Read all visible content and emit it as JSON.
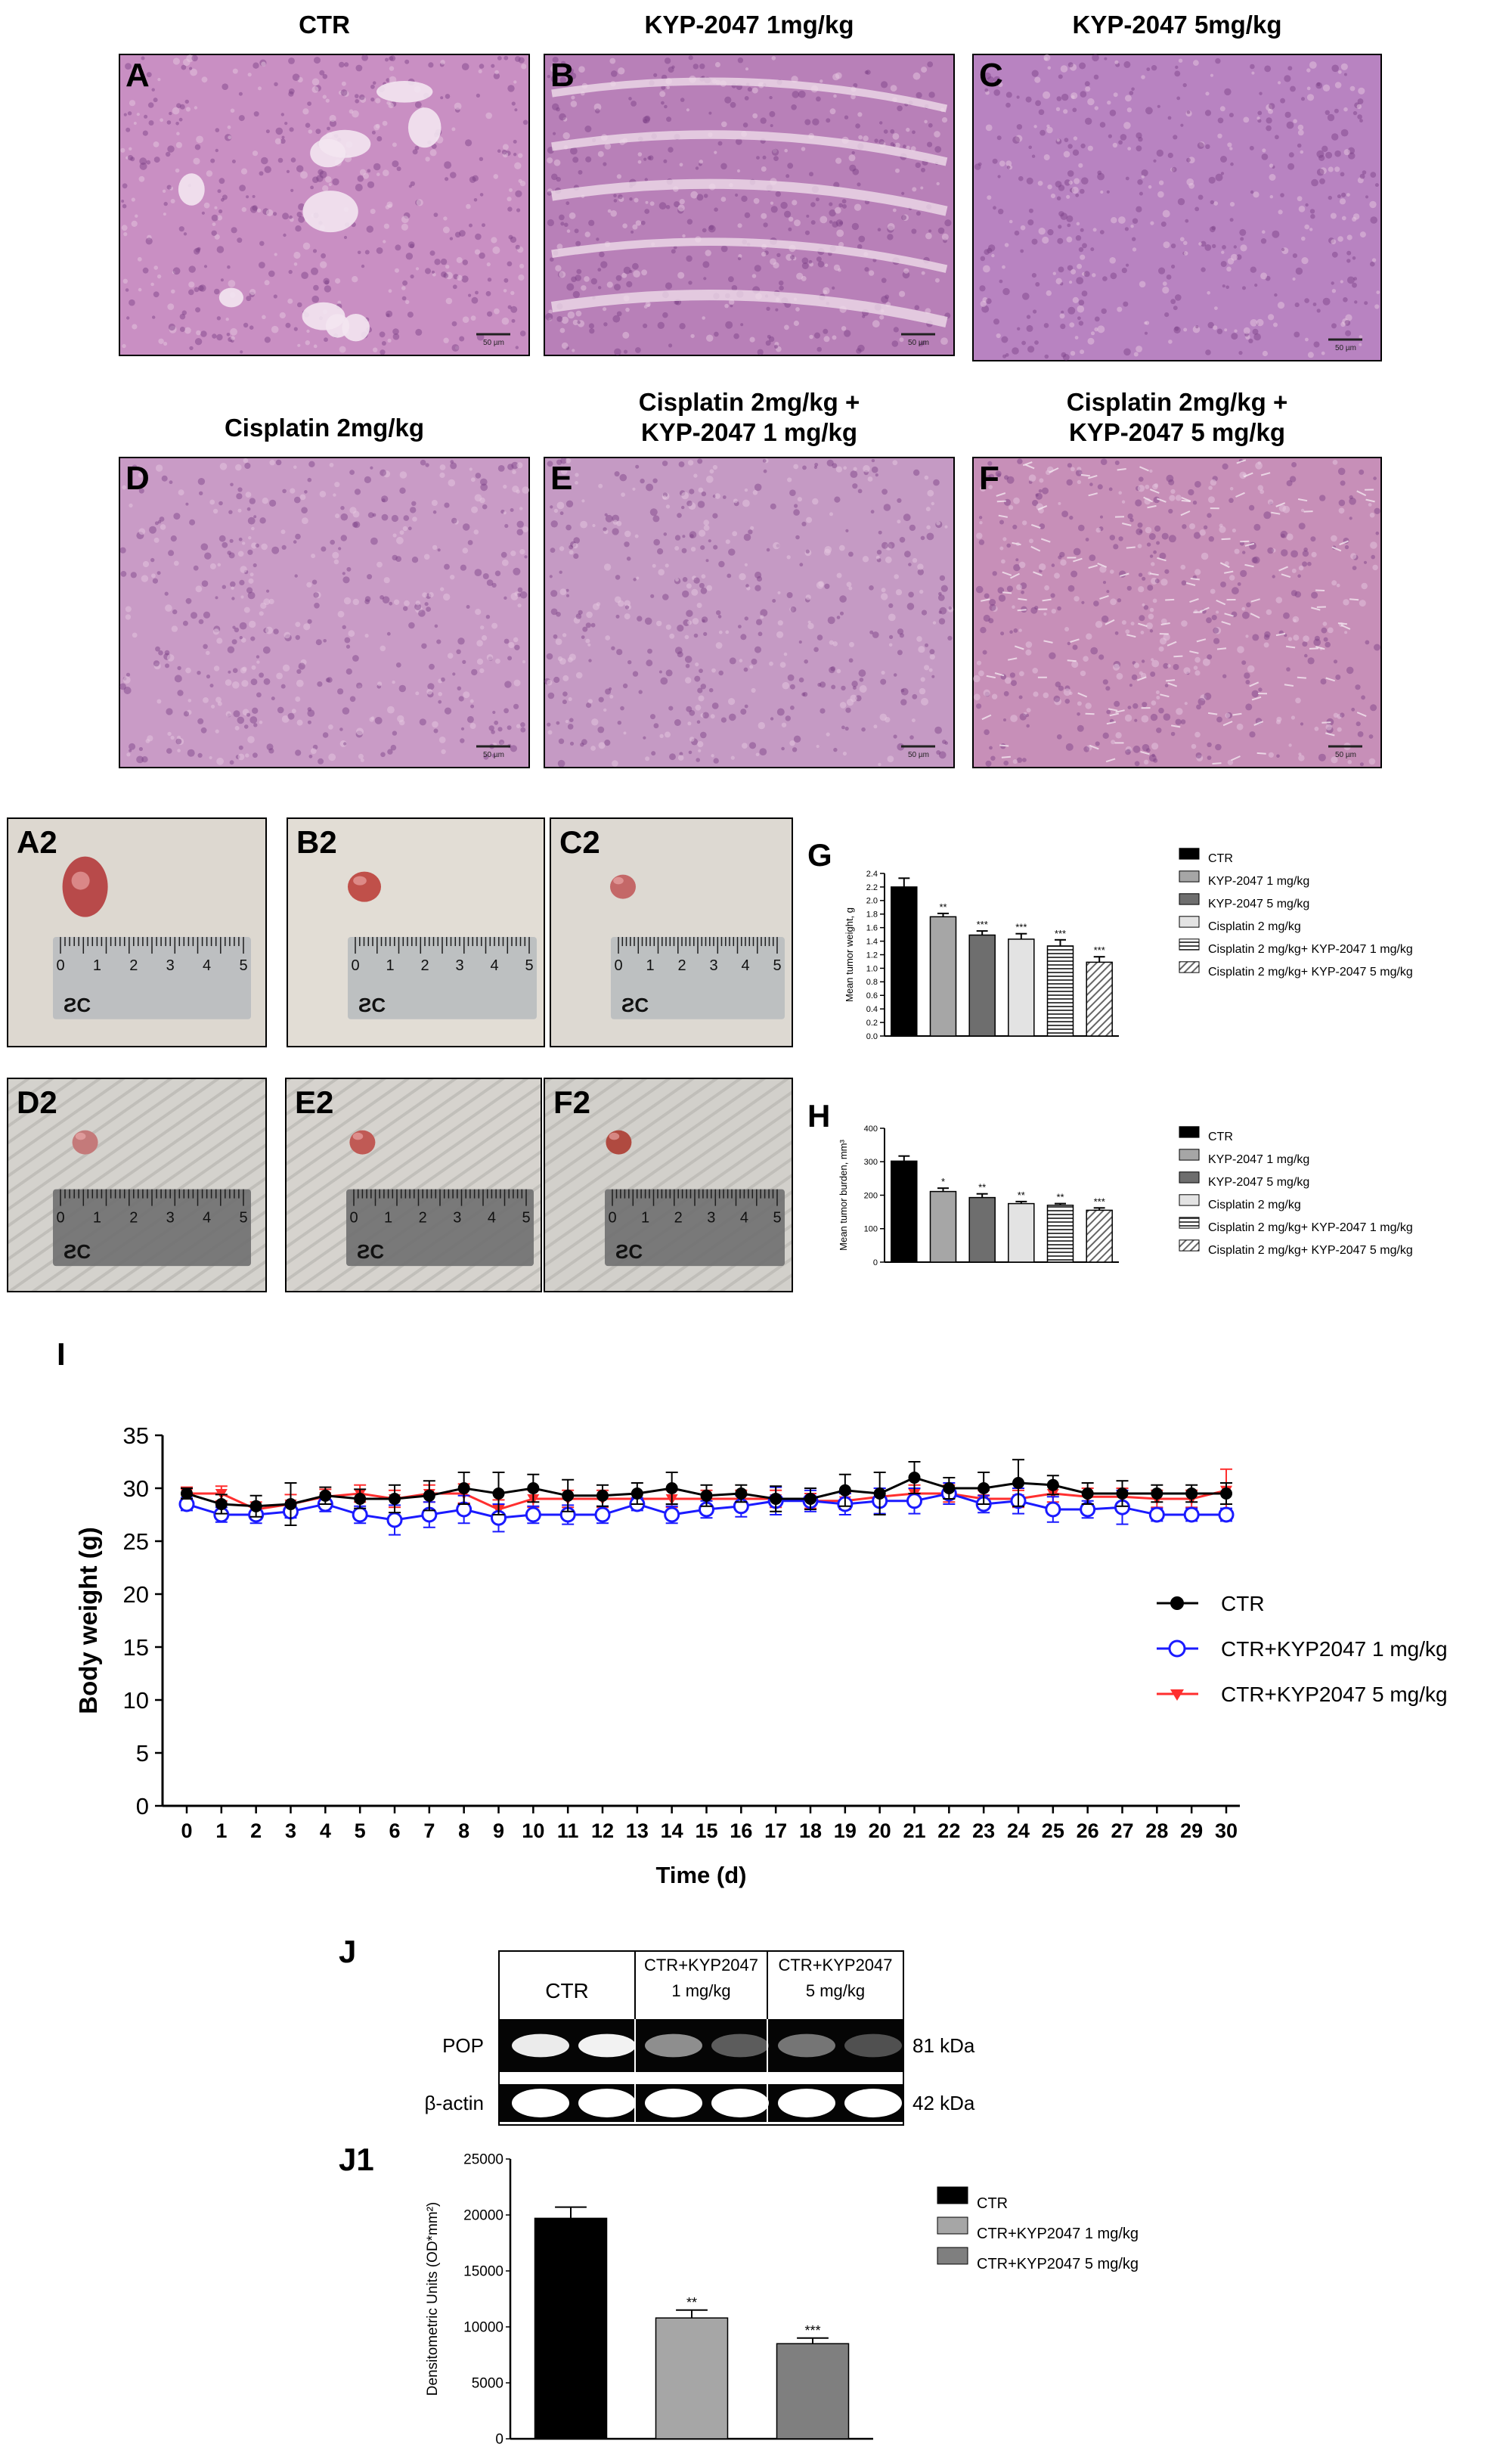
{
  "histology": {
    "panels": [
      {
        "letter": "A",
        "title_lines": [
          "CTR"
        ],
        "scale_label": "50 µm",
        "tone": "#c98fc3",
        "pattern": "loose"
      },
      {
        "letter": "B",
        "title_lines": [
          "KYP-2047 1mg/kg"
        ],
        "scale_label": "50 µm",
        "tone": "#b880b8",
        "pattern": "streak"
      },
      {
        "letter": "C",
        "title_lines": [
          "KYP-2047 5mg/kg"
        ],
        "scale_label": "50 µm",
        "tone": "#b883c1",
        "pattern": "dense"
      },
      {
        "letter": "D",
        "title_lines": [
          "Cisplatin  2mg/kg"
        ],
        "scale_label": "50 µm",
        "tone": "#c99bc6",
        "pattern": "dense"
      },
      {
        "letter": "E",
        "title_lines": [
          "Cisplatin 2mg/kg +",
          "KYP-2047 1 mg/kg"
        ],
        "scale_label": "50 µm",
        "tone": "#c59ac4",
        "pattern": "dense"
      },
      {
        "letter": "F",
        "title_lines": [
          "Cisplatin 2mg/kg +",
          "KYP-2047 5 mg/kg"
        ],
        "scale_label": "50 µm",
        "tone": "#c78fb8",
        "pattern": "mesh"
      }
    ]
  },
  "tumor_photos": {
    "panels": [
      {
        "letter": "A2",
        "background": "#ddd8d0",
        "tissue_color": "#b84a4a",
        "tissue_size": "large",
        "ruler_numbers": [
          "0",
          "1",
          "2",
          "3",
          "4",
          "5"
        ],
        "ruler_marking": "ƧC"
      },
      {
        "letter": "B2",
        "background": "#e2ddd5",
        "tissue_color": "#c0504a",
        "tissue_size": "medium",
        "ruler_numbers": [
          "0",
          "1",
          "2",
          "3",
          "4",
          "5"
        ],
        "ruler_marking": "ƧC"
      },
      {
        "letter": "C2",
        "background": "#ddd9d2",
        "tissue_color": "#c46868",
        "tissue_size": "small",
        "ruler_numbers": [
          "0",
          "1",
          "2",
          "3",
          "4",
          "5"
        ],
        "ruler_marking": "ƧC"
      },
      {
        "letter": "D2",
        "background": "#d4d2cd",
        "tissue_color": "#c47a7a",
        "tissue_size": "small",
        "ruler_numbers": [
          "0",
          "1",
          "2",
          "3",
          "4",
          "5"
        ],
        "ruler_marking": "ƧC"
      },
      {
        "letter": "E2",
        "background": "#d6d3ce",
        "tissue_color": "#c05a55",
        "tissue_size": "small",
        "ruler_numbers": [
          "0",
          "1",
          "2",
          "3",
          "4",
          "5"
        ],
        "ruler_marking": "ƧC"
      },
      {
        "letter": "F2",
        "background": "#d2d0cb",
        "tissue_color": "#b04a40",
        "tissue_size": "small",
        "ruler_numbers": [
          "0",
          "1",
          "2",
          "3",
          "4",
          "5"
        ],
        "ruler_marking": "ƧC"
      }
    ]
  },
  "chart_data": [
    {
      "id": "G",
      "type": "bar",
      "panel_letter": "G",
      "ylabel": "Mean tumor weight, g",
      "ylim": [
        0,
        2.4
      ],
      "yticks": [
        "0.0",
        "0.2",
        "0.4",
        "0.6",
        "0.8",
        "1.0",
        "1.2",
        "1.4",
        "1.6",
        "1.8",
        "2.0",
        "2.2",
        "2.4"
      ],
      "categories": [
        "CTR",
        "KYP-2047 1 mg/kg",
        "KYP-2047 5 mg/kg",
        "Cisplatin 2 mg/kg",
        "Cisplatin 2 mg/kg+ KYP-2047 1 mg/kg",
        "Cisplatin 2 mg/kg+ KYP-2047 5 mg/kg"
      ],
      "values": [
        2.2,
        1.76,
        1.49,
        1.43,
        1.33,
        1.09
      ],
      "errors": [
        0.13,
        0.05,
        0.06,
        0.08,
        0.09,
        0.08
      ],
      "significance": [
        "",
        "**",
        "***",
        "***",
        "***",
        "***"
      ],
      "fills": [
        "#000000",
        "#a6a6a6",
        "#6e6e6e",
        "#e3e3e3",
        "hlines",
        "diag"
      ],
      "legend_position": "right"
    },
    {
      "id": "H",
      "type": "bar",
      "panel_letter": "H",
      "ylabel": "Mean tumor burden, mm³",
      "ylim": [
        0,
        400
      ],
      "yticks": [
        "0",
        "100",
        "200",
        "300",
        "400"
      ],
      "categories": [
        "CTR",
        "KYP-2047 1 mg/kg",
        "KYP-2047 5 mg/kg",
        "Cisplatin 2 mg/kg",
        "Cisplatin 2 mg/kg+ KYP-2047 1 mg/kg",
        "Cisplatin 2 mg/kg+ KYP-2047 5 mg/kg"
      ],
      "values": [
        302,
        211,
        193,
        175,
        170,
        155
      ],
      "errors": [
        15,
        10,
        11,
        6,
        5,
        7
      ],
      "significance": [
        "",
        "*",
        "**",
        "**",
        "**",
        "***"
      ],
      "fills": [
        "#000000",
        "#a6a6a6",
        "#6e6e6e",
        "#e3e3e3",
        "hlines",
        "diag"
      ],
      "legend_position": "right"
    },
    {
      "id": "I",
      "type": "line",
      "panel_letter": "I",
      "xlabel": "Time (d)",
      "ylabel": "Body weight  (g)",
      "xlim": [
        0,
        30
      ],
      "ylim": [
        0,
        35
      ],
      "yticks": [
        "0",
        "5",
        "10",
        "15",
        "20",
        "25",
        "30",
        "35"
      ],
      "x": [
        0,
        1,
        2,
        3,
        4,
        5,
        6,
        7,
        8,
        9,
        10,
        11,
        12,
        13,
        14,
        15,
        16,
        17,
        18,
        19,
        20,
        21,
        22,
        23,
        24,
        25,
        26,
        27,
        28,
        29,
        30
      ],
      "series": [
        {
          "name": "CTR",
          "color": "#000000",
          "marker": "filled-circle",
          "values": [
            29.5,
            28.5,
            28.3,
            28.5,
            29.3,
            29,
            29,
            29.3,
            30,
            29.5,
            30,
            29.3,
            29.3,
            29.5,
            30,
            29.3,
            29.5,
            29,
            29,
            29.8,
            29.5,
            31,
            30,
            30,
            30.5,
            30.3,
            29.5,
            29.5,
            29.5,
            29.5,
            29.5
          ],
          "errors": [
            0.5,
            0.9,
            1,
            2,
            0.8,
            0.9,
            1.3,
            1.4,
            1.5,
            2,
            1.3,
            1.5,
            1,
            1,
            1.5,
            1,
            0.8,
            1.2,
            1,
            1.5,
            2,
            1.5,
            1,
            1.5,
            2.2,
            0.9,
            1,
            1.2,
            0.8,
            0.8,
            1
          ]
        },
        {
          "name": "CTR+KYP2047 1 mg/kg",
          "color": "#1a1aff",
          "marker": "open-circle",
          "values": [
            28.5,
            27.5,
            27.5,
            27.8,
            28.5,
            27.5,
            27,
            27.5,
            28,
            27.2,
            27.5,
            27.5,
            27.5,
            28.5,
            27.5,
            28,
            28.3,
            28.8,
            28.8,
            28.5,
            28.8,
            28.8,
            29.5,
            28.5,
            28.8,
            28,
            28,
            28.2,
            27.5,
            27.5,
            27.5
          ],
          "errors": [
            0.6,
            0.7,
            0.8,
            0.6,
            0.7,
            0.8,
            1.4,
            1.2,
            1.3,
            1.3,
            0.8,
            0.9,
            0.8,
            0.6,
            0.8,
            0.8,
            1,
            1.3,
            1,
            1,
            1.2,
            1.2,
            1,
            0.8,
            1.2,
            1.2,
            0.8,
            1.6,
            0.6,
            0.6,
            0.6
          ]
        },
        {
          "name": "CTR+KYP2047 5 mg/kg",
          "color": "#ff2e2e",
          "marker": "down-triangle",
          "values": [
            29.5,
            29.5,
            28,
            28.5,
            29.2,
            29.5,
            29,
            29.5,
            29.5,
            28,
            29,
            29,
            29,
            29,
            29,
            29,
            29,
            29,
            28.8,
            28.8,
            29.2,
            29.5,
            29.5,
            29,
            29,
            29.5,
            29.2,
            29.2,
            29,
            29,
            29.8
          ],
          "errors": [
            0.6,
            0.7,
            0.7,
            0.9,
            0.7,
            0.8,
            0.8,
            0.8,
            0.9,
            0.9,
            0.8,
            0.8,
            0.8,
            0.6,
            0.8,
            0.8,
            0.8,
            0.8,
            0.7,
            0.8,
            0.8,
            0.8,
            0.8,
            0.8,
            0.8,
            0.8,
            0.8,
            0.8,
            0.8,
            0.8,
            2
          ]
        }
      ],
      "legend_position": "right"
    },
    {
      "id": "J1",
      "type": "bar",
      "panel_letter": "J1",
      "ylabel": "Densitometric Units (OD*mm²)",
      "ylim": [
        0,
        25000
      ],
      "yticks": [
        "0",
        "5000",
        "10000",
        "15000",
        "20000",
        "25000"
      ],
      "categories": [
        "CTR",
        "CTR+KYP2047 1 mg/kg",
        "CTR+KYP2047 5 mg/kg"
      ],
      "values": [
        19700,
        10800,
        8500
      ],
      "errors": [
        1000,
        700,
        500
      ],
      "significance": [
        "",
        "**",
        "***"
      ],
      "fills": [
        "#000000",
        "#a6a6a6",
        "#7f7f7f"
      ],
      "legend_position": "right"
    }
  ],
  "western_blot": {
    "panel_letter": "J",
    "groups": [
      {
        "lines": [
          "CTR"
        ]
      },
      {
        "lines": [
          "CTR+KYP2047",
          "1 mg/kg"
        ]
      },
      {
        "lines": [
          "CTR+KYP2047",
          "5 mg/kg"
        ]
      }
    ],
    "rows": [
      {
        "label": "POP",
        "kda": "81 kDa",
        "band_intensities": [
          0.92,
          0.95,
          0.55,
          0.35,
          0.45,
          0.3
        ]
      },
      {
        "label": "β-actin",
        "kda": "42 kDa",
        "band_intensities": [
          1,
          1,
          1,
          1,
          1,
          1
        ]
      }
    ]
  }
}
